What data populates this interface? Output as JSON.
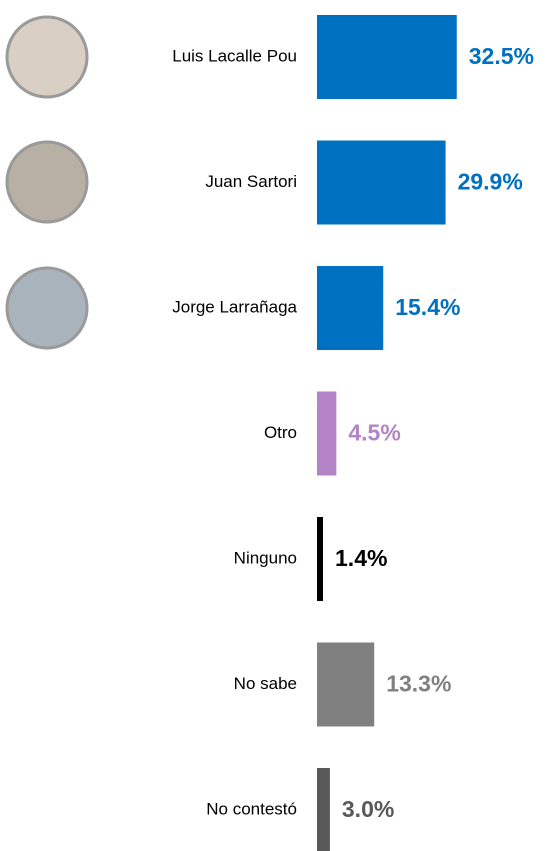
{
  "chart_data": {
    "type": "bar",
    "categories": [
      "Luis Lacalle Pou",
      "Juan Sartori",
      "Jorge Larrañaga",
      "Otro",
      "Ninguno",
      "No sabe",
      "No contestó"
    ],
    "values": [
      32.5,
      29.9,
      15.4,
      4.5,
      1.4,
      13.3,
      3.0
    ],
    "value_labels": [
      "32.5%",
      "29.9%",
      "15.4%",
      "4.5%",
      "1.4%",
      "13.3%",
      "3.0%"
    ],
    "colors": [
      "#0070c0",
      "#0070c0",
      "#0070c0",
      "#b383c6",
      "#000000",
      "#808080",
      "#595959"
    ]
  }
}
